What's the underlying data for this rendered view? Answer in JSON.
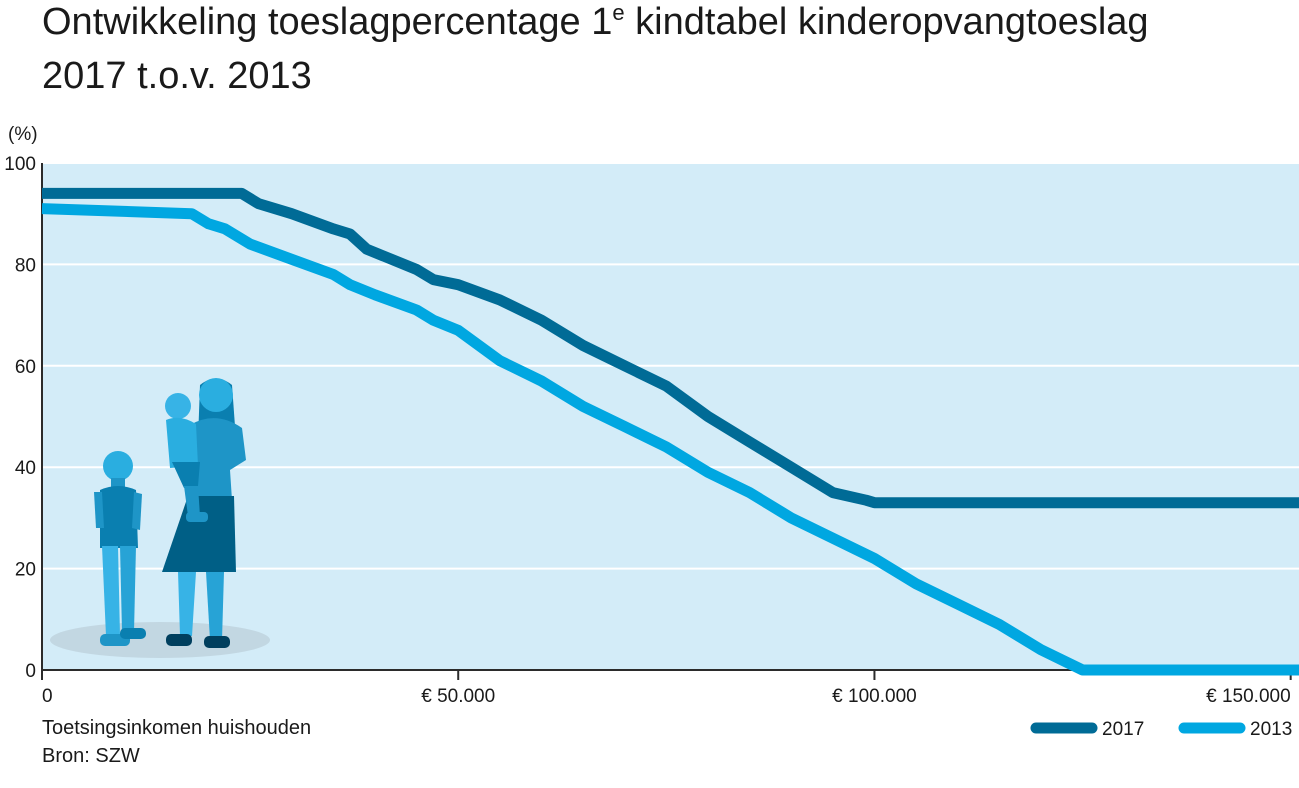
{
  "chart_data": {
    "type": "line",
    "title": "Ontwikkeling toeslagpercentage 1e kindtabel kinderopvangtoeslag",
    "title_line1_main": "Ontwikkeling toeslagpercentage 1",
    "title_line1_sup": "e",
    "title_line1_tail": " kindtabel kinderopvangtoeslag",
    "title_line2": "2017 t.o.v. 2013",
    "ylabel": "(%)",
    "xlabel": "Toetsingsinkomen huishouden",
    "source": "Bron: SZW",
    "ylim": [
      0,
      100
    ],
    "xlim": [
      0,
      151000
    ],
    "y_ticks": [
      0,
      20,
      40,
      60,
      80,
      100
    ],
    "y_tick_labels": [
      "0",
      "20",
      "40",
      "60",
      "80",
      "100"
    ],
    "x_ticks": [
      0,
      50000,
      100000,
      150000
    ],
    "x_tick_labels": [
      "0",
      "€ 50.000",
      "€ 100.000",
      "€ 150.000"
    ],
    "grid": true,
    "legend_position": "bottom-right",
    "background": "#d3ecf8",
    "series": [
      {
        "name": "2017",
        "color": "#006b96",
        "x": [
          0,
          24000,
          26000,
          30000,
          35000,
          37000,
          39000,
          42000,
          45000,
          47000,
          50000,
          55000,
          60000,
          65000,
          70000,
          75000,
          80000,
          85000,
          90000,
          95000,
          99000,
          100000,
          120000,
          151000
        ],
        "y": [
          94,
          94,
          92,
          90,
          87,
          86,
          83,
          81,
          79,
          77,
          76,
          73,
          69,
          64,
          60,
          56,
          50,
          45,
          40,
          35,
          33.5,
          33,
          33,
          33
        ]
      },
      {
        "name": "2013",
        "color": "#00a7e1",
        "x": [
          0,
          18000,
          20000,
          22000,
          25000,
          30000,
          35000,
          37000,
          40000,
          45000,
          47000,
          50000,
          55000,
          60000,
          65000,
          70000,
          75000,
          80000,
          85000,
          90000,
          95000,
          100000,
          105000,
          110000,
          115000,
          120000,
          125000,
          151000
        ],
        "y": [
          91,
          90,
          88,
          87,
          84,
          81,
          78,
          76,
          74,
          71,
          69,
          67,
          61,
          57,
          52,
          48,
          44,
          39,
          35,
          30,
          26,
          22,
          17,
          13,
          9,
          4,
          0,
          0
        ]
      }
    ]
  }
}
